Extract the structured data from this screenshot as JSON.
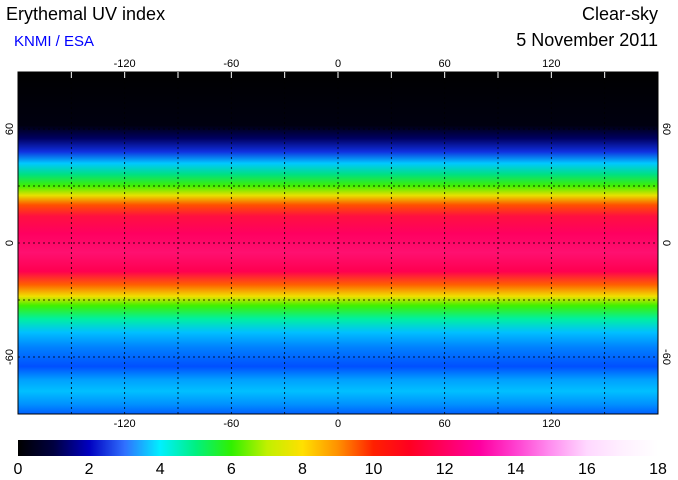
{
  "header": {
    "title": "Erythemal UV index",
    "source": "KNMI / ESA",
    "condition": "Clear-sky",
    "date": "5 November 2011"
  },
  "map": {
    "lon_range": [
      -180,
      180
    ],
    "lat_range": [
      -90,
      90
    ],
    "lon_ticks": [
      -120,
      -60,
      0,
      60,
      120
    ],
    "lat_ticks": [
      60,
      0,
      -60
    ],
    "grid_lon": [
      -150,
      -120,
      -90,
      -60,
      -30,
      0,
      30,
      60,
      90,
      120,
      150
    ],
    "grid_lat": [
      60,
      30,
      0,
      -30,
      -60
    ]
  },
  "colorbar": {
    "range": [
      0,
      18
    ],
    "ticks": [
      0,
      2,
      4,
      6,
      8,
      10,
      12,
      14,
      16,
      18
    ],
    "colors": [
      "#000000",
      "#000040",
      "#0000c0",
      "#3070ff",
      "#00f0ff",
      "#00f080",
      "#30f000",
      "#c0f000",
      "#ffe000",
      "#ff9000",
      "#ff2000",
      "#ff0020",
      "#ff0060",
      "#ff00a0",
      "#ff40d0",
      "#ff90f0",
      "#ffd8ff",
      "#fff0ff",
      "#ffffff"
    ]
  }
}
